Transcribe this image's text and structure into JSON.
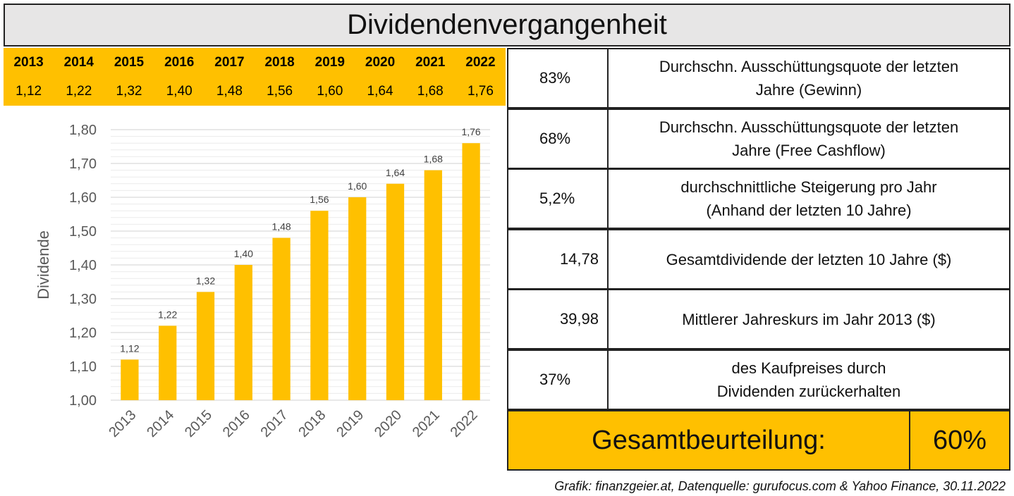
{
  "title": "Dividendenvergangenheit",
  "year_table": {
    "years": [
      "2013",
      "2014",
      "2015",
      "2016",
      "2017",
      "2018",
      "2019",
      "2020",
      "2021",
      "2022"
    ],
    "dividends": [
      "1,12",
      "1,22",
      "1,32",
      "1,40",
      "1,48",
      "1,56",
      "1,60",
      "1,64",
      "1,68",
      "1,76"
    ]
  },
  "chart_data": {
    "type": "bar",
    "categories": [
      "2013",
      "2014",
      "2015",
      "2016",
      "2017",
      "2018",
      "2019",
      "2020",
      "2021",
      "2022"
    ],
    "values": [
      1.12,
      1.22,
      1.32,
      1.4,
      1.48,
      1.56,
      1.6,
      1.64,
      1.68,
      1.76
    ],
    "value_labels": [
      "1,12",
      "1,22",
      "1,32",
      "1,40",
      "1,48",
      "1,56",
      "1,60",
      "1,64",
      "1,68",
      "1,76"
    ],
    "ylabel": "Dividende",
    "xlabel": "",
    "ylim": [
      1.0,
      1.8
    ],
    "yticks": [
      "1,00",
      "1,10",
      "1,20",
      "1,30",
      "1,40",
      "1,50",
      "1,60",
      "1,70",
      "1,80"
    ],
    "grid": true,
    "bar_color": "#ffc000"
  },
  "stats": [
    {
      "value": "83%",
      "desc_lines": [
        "Durchschn. Ausschüttungsquote der letzten",
        "Jahre (Gewinn)"
      ]
    },
    {
      "value": "68%",
      "desc_lines": [
        "Durchschn. Ausschüttungsquote der letzten",
        "Jahre (Free Cashflow)"
      ]
    },
    {
      "value": "5,2%",
      "desc_lines": [
        "durchschnittliche Steigerung pro Jahr",
        "(Anhand der letzten 10 Jahre)"
      ]
    },
    {
      "value": "14,78",
      "desc_lines": [
        "Gesamtdividende der letzten 10 Jahre ($)"
      ]
    },
    {
      "value": "39,98",
      "desc_lines": [
        "Mittlerer Jahreskurs im Jahr 2013 ($)"
      ]
    },
    {
      "value": "37%",
      "desc_lines": [
        "des Kaufpreises durch",
        "Dividenden zurückerhalten"
      ]
    }
  ],
  "summary": {
    "label": "Gesamtbeurteilung:",
    "value": "60%"
  },
  "footer": "Grafik: finanzgeier.at, Datenquelle: gurufocus.com & Yahoo Finance, 30.11.2022",
  "colors": {
    "accent": "#ffc000",
    "header_bg": "#e7e6e6",
    "border": "#222222"
  }
}
